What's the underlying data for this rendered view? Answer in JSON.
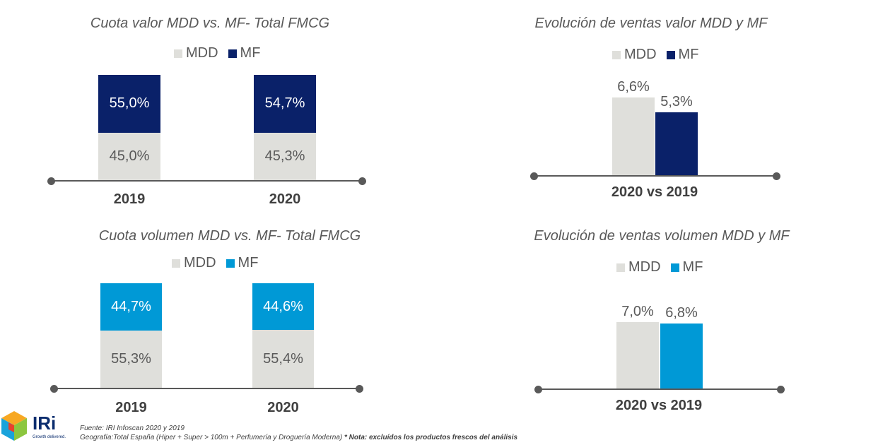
{
  "colors": {
    "mdd": "#dfdfdb",
    "mf_valor": "#0a2169",
    "mf_volumen": "#0099d6",
    "axis": "#595959"
  },
  "chart_data": [
    {
      "type": "bar",
      "stacked": true,
      "title": "Cuota valor MDD vs. MF- Total FMCG",
      "legend": [
        "MDD",
        "MF"
      ],
      "categories": [
        "2019",
        "2020"
      ],
      "series": [
        {
          "name": "MDD",
          "values": [
            45.0,
            45.3
          ],
          "labels": [
            "45,0%",
            "45,3%"
          ]
        },
        {
          "name": "MF",
          "values": [
            55.0,
            54.7
          ],
          "labels": [
            "55,0%",
            "54,7%"
          ]
        }
      ]
    },
    {
      "type": "bar",
      "title": "Evolución de ventas valor MDD y MF",
      "legend": [
        "MDD",
        "MF"
      ],
      "categories": [
        "2020 vs 2019"
      ],
      "series": [
        {
          "name": "MDD",
          "values": [
            6.6
          ],
          "labels": [
            "6,6%"
          ]
        },
        {
          "name": "MF",
          "values": [
            5.3
          ],
          "labels": [
            "5,3%"
          ]
        }
      ]
    },
    {
      "type": "bar",
      "stacked": true,
      "title": "Cuota volumen MDD vs. MF- Total FMCG",
      "legend": [
        "MDD",
        "MF"
      ],
      "categories": [
        "2019",
        "2020"
      ],
      "series": [
        {
          "name": "MDD",
          "values": [
            55.3,
            55.4
          ],
          "labels": [
            "55,3%",
            "55,4%"
          ]
        },
        {
          "name": "MF",
          "values": [
            44.7,
            44.6
          ],
          "labels": [
            "44,7%",
            "44,6%"
          ]
        }
      ]
    },
    {
      "type": "bar",
      "title": "Evolución de ventas volumen MDD y MF",
      "legend": [
        "MDD",
        "MF"
      ],
      "categories": [
        "2020 vs 2019"
      ],
      "series": [
        {
          "name": "MDD",
          "values": [
            7.0
          ],
          "labels": [
            "7,0%"
          ]
        },
        {
          "name": "MF",
          "values": [
            6.8
          ],
          "labels": [
            "6,8%"
          ]
        }
      ]
    }
  ],
  "footer": {
    "source": "Fuente: IRI Infoscan 2020 y 2019",
    "geography": "Geografía:Total España (Hiper + Super > 100m + Perfumería y Droguería Moderna)",
    "note": "* Nota: excluídos los productos frescos del análisis"
  },
  "logo": {
    "name": "IRi",
    "tagline": "Growth delivered."
  }
}
